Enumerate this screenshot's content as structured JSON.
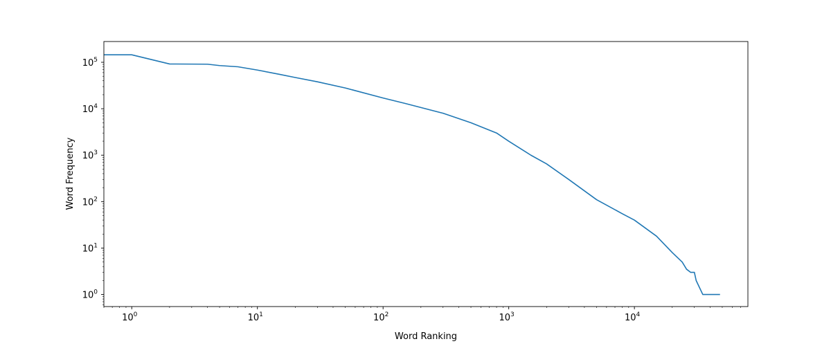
{
  "chart_data": {
    "type": "line",
    "title": "",
    "xlabel": "Word Ranking",
    "ylabel": "Word Frequency",
    "xscale": "log",
    "yscale": "log",
    "xlim": [
      0.6,
      80000
    ],
    "ylim": [
      0.55,
      280000
    ],
    "grid": false,
    "legend": "none",
    "color": "#1f77b4",
    "x_ticks": [
      {
        "value": 1,
        "base": "10",
        "exp": "0"
      },
      {
        "value": 10,
        "base": "10",
        "exp": "1"
      },
      {
        "value": 100,
        "base": "10",
        "exp": "2"
      },
      {
        "value": 1000,
        "base": "10",
        "exp": "3"
      },
      {
        "value": 10000,
        "base": "10",
        "exp": "4"
      }
    ],
    "y_ticks": [
      {
        "value": 1,
        "base": "10",
        "exp": "0"
      },
      {
        "value": 10,
        "base": "10",
        "exp": "1"
      },
      {
        "value": 100,
        "base": "10",
        "exp": "2"
      },
      {
        "value": 1000,
        "base": "10",
        "exp": "3"
      },
      {
        "value": 10000,
        "base": "10",
        "exp": "4"
      },
      {
        "value": 100000,
        "base": "10",
        "exp": "5"
      }
    ],
    "series": [
      {
        "x": [
          0.6,
          1,
          2,
          4,
          5,
          7,
          10,
          15,
          20,
          30,
          50,
          100,
          150,
          300,
          500,
          800,
          1000,
          1500,
          2000,
          3000,
          5000,
          8000,
          10000,
          15000,
          20000,
          24000,
          26000,
          28000,
          30000,
          31000,
          35000,
          48000
        ],
        "y": [
          145000,
          145000,
          92000,
          91000,
          85000,
          80000,
          68000,
          55000,
          47000,
          38000,
          28000,
          17000,
          13000,
          8000,
          5000,
          3000,
          2000,
          1000,
          650,
          300,
          110,
          55,
          40,
          18,
          8,
          5,
          3.5,
          3,
          3,
          2,
          1,
          1
        ]
      }
    ]
  }
}
